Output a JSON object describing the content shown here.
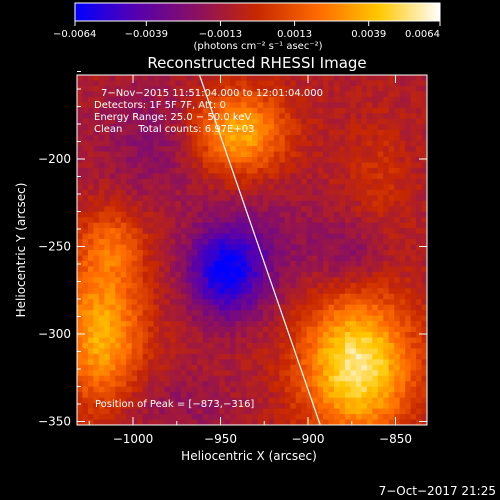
{
  "chart_data": {
    "type": "heatmap",
    "title": "Reconstructed RHESSI Image",
    "xlabel": "Heliocentric X (arcsec)",
    "ylabel": "Heliocentric Y (arcsec)",
    "xlim": [
      -1032,
      -832
    ],
    "ylim": [
      -352,
      -152
    ],
    "xticks": [
      -1000,
      -950,
      -900,
      -850
    ],
    "yticks": [
      -200,
      -250,
      -300,
      -350
    ],
    "xtick_labels": [
      "−1000",
      "−950",
      "−900",
      "−850"
    ],
    "ytick_labels": [
      "−200",
      "−250",
      "−300",
      "−350"
    ],
    "colorbar": {
      "min": -0.0064,
      "max": 0.0064,
      "ticks": [
        -0.0064,
        -0.0039,
        -0.0013,
        0.0013,
        0.0039,
        0.0064
      ],
      "tick_labels": [
        "−0.0064",
        "−0.0039",
        "−0.0013",
        "0.0013",
        "0.0039",
        "0.0064"
      ],
      "label": "(photons cm⁻² s⁻¹ asec⁻²)",
      "colormap": [
        "#0000ff",
        "#5500b0",
        "#8a1060",
        "#c82800",
        "#ff6a00",
        "#ffc800",
        "#ffffff"
      ]
    },
    "annotations": [
      "7−Nov−2015 11:51:04.000 to 12:01:04.000",
      "Detectors: 1F 5F 7F, Att: 0",
      "Energy Range: 25.0 − 50.0 keV",
      "Clean     Total counts: 6.97E+03"
    ],
    "peak_label": "Position of Peak = [−873,−316]",
    "peak": [
      -873,
      -316
    ],
    "limb_line": [
      [
        -962,
        -152
      ],
      [
        -893,
        -352
      ]
    ],
    "sources": [
      {
        "x": -940,
        "y": -185,
        "sx": 19,
        "sy": 17,
        "amp": 0.0048
      },
      {
        "x": -872,
        "y": -318,
        "sx": 22,
        "sy": 28,
        "amp": 0.0064
      },
      {
        "x": -1018,
        "y": -300,
        "sx": 17,
        "sy": 30,
        "amp": 0.0046
      },
      {
        "x": -1012,
        "y": -248,
        "sx": 13,
        "sy": 15,
        "amp": 0.0022
      },
      {
        "x": -860,
        "y": -210,
        "sx": 14,
        "sy": 24,
        "amp": 0.001
      },
      {
        "x": -947,
        "y": -265,
        "sx": 15,
        "sy": 18,
        "amp": -0.005
      },
      {
        "x": -985,
        "y": -190,
        "sx": 24,
        "sy": 24,
        "amp": -0.0014
      },
      {
        "x": -925,
        "y": -250,
        "sx": 24,
        "sy": 24,
        "amp": -0.0012
      },
      {
        "x": -980,
        "y": -340,
        "sx": 28,
        "sy": 14,
        "amp": -0.001
      },
      {
        "x": -875,
        "y": -255,
        "sx": 15,
        "sy": 15,
        "amp": -0.0015
      }
    ],
    "background": -0.0009
  },
  "timestamp": "7−Oct−2017 21:25"
}
